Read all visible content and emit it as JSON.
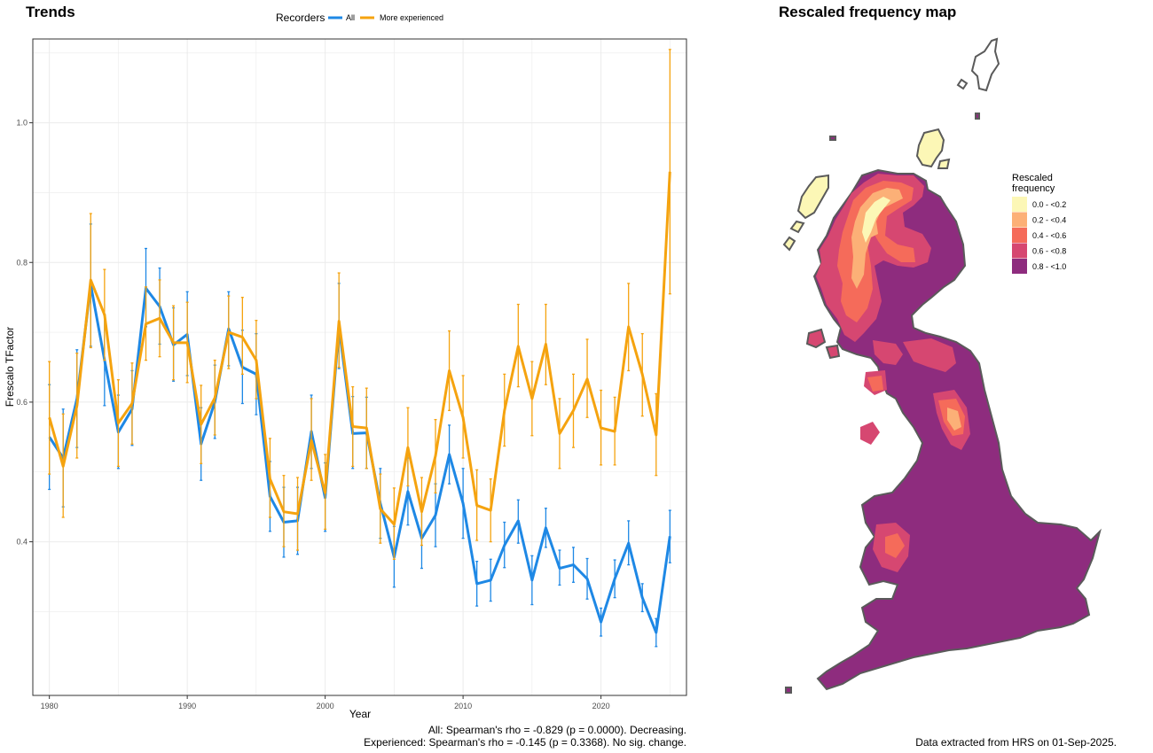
{
  "trends_title": "Trends",
  "map_title": "Rescaled frequency map",
  "chart_data": [
    {
      "type": "line",
      "title": "Trends",
      "xlabel": "Year",
      "ylabel": "Frescalo TFactor",
      "xlim": [
        1978.8,
        2026.2
      ],
      "ylim": [
        0.18,
        1.12
      ],
      "x_ticks": [
        1980,
        1990,
        2000,
        2010,
        2020
      ],
      "y_ticks": [
        0.4,
        0.6,
        0.8,
        1.0
      ],
      "y_tick_labels": [
        "0.4",
        "0.6",
        "0.8",
        "1.0"
      ],
      "grid": true,
      "legend_title": "Recorders",
      "legend_position": "top",
      "x": [
        1980,
        1981,
        1982,
        1983,
        1984,
        1985,
        1986,
        1987,
        1988,
        1989,
        1990,
        1991,
        1992,
        1993,
        1994,
        1995,
        1996,
        1997,
        1998,
        1999,
        2000,
        2001,
        2002,
        2003,
        2004,
        2005,
        2006,
        2007,
        2008,
        2009,
        2010,
        2011,
        2012,
        2013,
        2014,
        2015,
        2016,
        2017,
        2018,
        2019,
        2020,
        2021,
        2022,
        2023,
        2024,
        2025
      ],
      "series": [
        {
          "name": "All",
          "color": "#1e88e5",
          "values": [
            0.55,
            0.52,
            0.605,
            0.768,
            0.66,
            0.557,
            0.59,
            0.763,
            0.737,
            0.682,
            0.697,
            0.54,
            0.6,
            0.705,
            0.65,
            0.64,
            0.465,
            0.428,
            0.43,
            0.558,
            0.463,
            0.708,
            0.555,
            0.556,
            0.455,
            0.378,
            0.472,
            0.405,
            0.438,
            0.525,
            0.455,
            0.34,
            0.345,
            0.395,
            0.43,
            0.345,
            0.42,
            0.362,
            0.367,
            0.347,
            0.285,
            0.347,
            0.398,
            0.32,
            0.27,
            0.408
          ],
          "lower": [
            0.475,
            0.45,
            0.535,
            0.68,
            0.595,
            0.505,
            0.538,
            0.708,
            0.683,
            0.63,
            0.638,
            0.488,
            0.548,
            0.652,
            0.598,
            0.582,
            0.415,
            0.378,
            0.382,
            0.505,
            0.415,
            0.648,
            0.505,
            0.505,
            0.405,
            0.335,
            0.424,
            0.362,
            0.393,
            0.483,
            0.405,
            0.308,
            0.315,
            0.363,
            0.398,
            0.31,
            0.392,
            0.338,
            0.342,
            0.318,
            0.265,
            0.32,
            0.367,
            0.3,
            0.25,
            0.37
          ],
          "upper": [
            0.625,
            0.59,
            0.675,
            0.855,
            0.725,
            0.61,
            0.645,
            0.82,
            0.792,
            0.735,
            0.758,
            0.592,
            0.653,
            0.758,
            0.703,
            0.698,
            0.515,
            0.478,
            0.478,
            0.61,
            0.513,
            0.77,
            0.608,
            0.607,
            0.505,
            0.422,
            0.52,
            0.448,
            0.483,
            0.567,
            0.505,
            0.372,
            0.375,
            0.428,
            0.46,
            0.38,
            0.448,
            0.388,
            0.392,
            0.376,
            0.305,
            0.374,
            0.43,
            0.34,
            0.29,
            0.445
          ]
        },
        {
          "name": "More experienced",
          "color": "#f5a30f",
          "values": [
            0.578,
            0.508,
            0.595,
            0.775,
            0.725,
            0.57,
            0.598,
            0.712,
            0.72,
            0.685,
            0.685,
            0.568,
            0.606,
            0.7,
            0.693,
            0.66,
            0.49,
            0.443,
            0.44,
            0.545,
            0.47,
            0.716,
            0.565,
            0.563,
            0.447,
            0.425,
            0.535,
            0.443,
            0.523,
            0.645,
            0.578,
            0.452,
            0.445,
            0.588,
            0.68,
            0.605,
            0.683,
            0.555,
            0.588,
            0.633,
            0.563,
            0.558,
            0.708,
            0.64,
            0.553,
            0.93
          ],
          "lower": [
            0.497,
            0.435,
            0.52,
            0.678,
            0.66,
            0.508,
            0.54,
            0.66,
            0.665,
            0.632,
            0.628,
            0.512,
            0.553,
            0.648,
            0.64,
            0.605,
            0.435,
            0.393,
            0.388,
            0.488,
            0.418,
            0.65,
            0.508,
            0.505,
            0.398,
            0.375,
            0.48,
            0.395,
            0.47,
            0.588,
            0.52,
            0.402,
            0.4,
            0.537,
            0.622,
            0.552,
            0.625,
            0.505,
            0.535,
            0.578,
            0.51,
            0.51,
            0.645,
            0.58,
            0.495,
            0.755
          ],
          "upper": [
            0.658,
            0.583,
            0.67,
            0.87,
            0.79,
            0.632,
            0.656,
            0.765,
            0.775,
            0.738,
            0.743,
            0.624,
            0.66,
            0.752,
            0.75,
            0.717,
            0.548,
            0.495,
            0.492,
            0.605,
            0.525,
            0.785,
            0.622,
            0.62,
            0.497,
            0.477,
            0.592,
            0.492,
            0.575,
            0.702,
            0.638,
            0.503,
            0.49,
            0.64,
            0.74,
            0.658,
            0.74,
            0.605,
            0.64,
            0.69,
            0.617,
            0.607,
            0.77,
            0.698,
            0.612,
            1.105
          ]
        }
      ],
      "annotations": [
        "All: Spearman's rho = -0.829 (p = 0.0000). Decreasing.",
        "Experienced: Spearman's rho = -0.145 (p = 0.3368). No sig. change."
      ]
    }
  ],
  "map": {
    "legend_title_line1": "Rescaled",
    "legend_title_line2": "frequency",
    "bins": [
      {
        "label": "0.0 - <0.2",
        "color": "#fcf7b6"
      },
      {
        "label": "0.2 - <0.4",
        "color": "#fcb077"
      },
      {
        "label": "0.4 - <0.6",
        "color": "#f56b5a"
      },
      {
        "label": "0.6 - <0.8",
        "color": "#d64771"
      },
      {
        "label": "0.8 - <1.0",
        "color": "#8e2c7e"
      }
    ],
    "outline_color": "#5a5a5a"
  },
  "caption_right": "Data extracted from HRS on 01-Sep-2025."
}
